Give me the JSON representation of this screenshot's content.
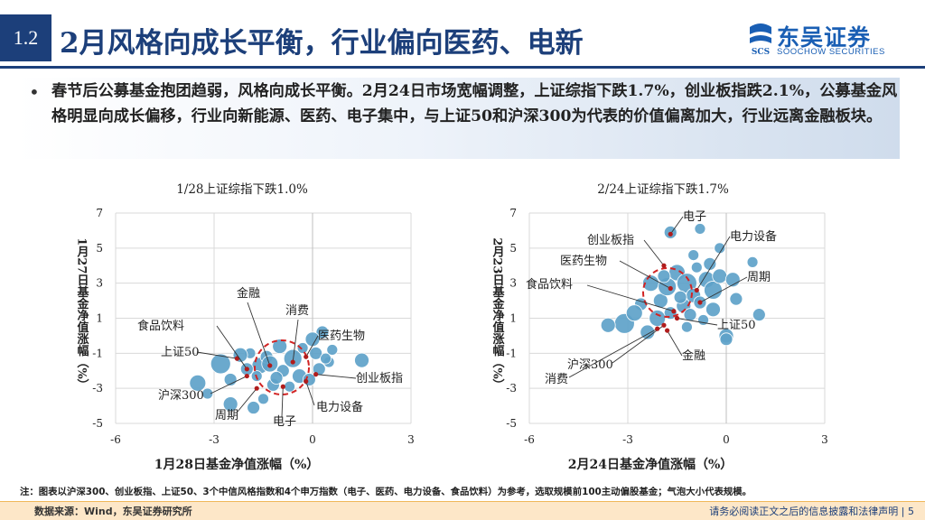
{
  "header": {
    "section_number": "1.2",
    "title": "2月风格向成长平衡，行业偏向医药、电新",
    "logo_cn": "东吴证券",
    "logo_en": "SOOCHOW SECURITIES"
  },
  "bullet": "春节后公募基金抱团趋弱，风格向成长平衡。2月24日市场宽幅调整，上证综指下跌1.7%，创业板指跌2.1%，公募基金风格明显向成长偏移，行业向新能源、医药、电子集中，与上证50和沪深300为代表的价值偏离加大，行业远离金融板块。",
  "colors": {
    "bubble": "#5ea2c9",
    "marker": "#b01c1c",
    "title": "#1c3f7a"
  },
  "chart_data": [
    {
      "type": "scatter",
      "title": "1/28上证综指下跌1.0%",
      "xlabel": "1月28日基金净值涨幅（%）",
      "ylabel": "1月27日基金净值涨幅（%）",
      "xlim": [
        -6,
        3
      ],
      "ylim": [
        -5,
        7
      ],
      "xticks": [
        -6,
        -3,
        0,
        3
      ],
      "yticks": [
        7,
        5,
        3,
        1,
        -1,
        -3,
        -5
      ],
      "bubbles": [
        [
          -2.8,
          -1.6
        ],
        [
          -2.5,
          -2.5
        ],
        [
          -3.5,
          -2.7
        ],
        [
          -3.2,
          -3.3
        ],
        [
          -2.5,
          -3.9
        ],
        [
          -1.8,
          -4.1
        ],
        [
          -1.5,
          -3.6
        ],
        [
          -1.2,
          -2.8
        ],
        [
          -1.6,
          -1.7
        ],
        [
          -1.4,
          -1.2
        ],
        [
          -1.9,
          -1.0
        ],
        [
          -1.0,
          -0.6
        ],
        [
          -0.6,
          -1.3
        ],
        [
          -0.3,
          -0.7
        ],
        [
          0.1,
          -1.0
        ],
        [
          0.5,
          -1.5
        ],
        [
          0.3,
          0.2
        ],
        [
          0.0,
          -0.2
        ],
        [
          -0.9,
          -2.0
        ],
        [
          -0.4,
          -2.3
        ],
        [
          -0.7,
          -2.9
        ],
        [
          -1.1,
          -2.4
        ],
        [
          -1.3,
          -1.6
        ],
        [
          0.6,
          -0.8
        ],
        [
          1.5,
          -1.4
        ],
        [
          0.2,
          -1.9
        ],
        [
          0.4,
          -1.3
        ],
        [
          -0.1,
          -2.5
        ],
        [
          -2.2,
          -1.1
        ],
        [
          -2.0,
          -1.9
        ],
        [
          -1.7,
          -2.3
        ]
      ],
      "annotations": [
        {
          "label": "金融",
          "x": -1.3,
          "y": -1.7
        },
        {
          "label": "消费",
          "x": -0.6,
          "y": -1.5
        },
        {
          "label": "医药生物",
          "x": -0.2,
          "y": -1.2
        },
        {
          "label": "创业板指",
          "x": 0.1,
          "y": -2.2
        },
        {
          "label": "电力设备",
          "x": -0.2,
          "y": -2.6
        },
        {
          "label": "电子",
          "x": -0.9,
          "y": -2.9
        },
        {
          "label": "周期",
          "x": -1.7,
          "y": -3.0
        },
        {
          "label": "沪深300",
          "x": -2.0,
          "y": -2.3
        },
        {
          "label": "上证50",
          "x": -2.3,
          "y": -1.3
        },
        {
          "label": "食品饮料",
          "x": -2.0,
          "y": -1.9
        }
      ]
    },
    {
      "type": "scatter",
      "title": "2/24上证综指下跌1.7%",
      "xlabel": "2月24日基金净值涨幅（%）",
      "ylabel": "2月23日基金净值涨幅（%）",
      "xlim": [
        -6,
        3
      ],
      "ylim": [
        -5,
        7
      ],
      "xticks": [
        -6,
        -3,
        0,
        3
      ],
      "yticks": [
        7,
        5,
        3,
        1,
        -1,
        -3,
        -5
      ],
      "bubbles": [
        [
          -3.1,
          0.7
        ],
        [
          -3.6,
          0.6
        ],
        [
          -2.6,
          1.8
        ],
        [
          -2.3,
          3.0
        ],
        [
          -2.0,
          2.0
        ],
        [
          -1.8,
          2.8
        ],
        [
          -1.5,
          3.6
        ],
        [
          -1.2,
          3.0
        ],
        [
          -1.0,
          2.3
        ],
        [
          -0.8,
          1.9
        ],
        [
          -0.6,
          3.2
        ],
        [
          -0.4,
          2.6
        ],
        [
          -0.2,
          3.4
        ],
        [
          -1.7,
          1.3
        ],
        [
          -2.1,
          1.0
        ],
        [
          -1.3,
          1.7
        ],
        [
          -1.1,
          1.2
        ],
        [
          -0.7,
          0.9
        ],
        [
          -1.7,
          5.9
        ],
        [
          -0.8,
          6.1
        ],
        [
          -0.2,
          5.0
        ],
        [
          -0.5,
          4.1
        ],
        [
          0.2,
          3.2
        ],
        [
          -1.0,
          4.6
        ],
        [
          0.3,
          2.1
        ],
        [
          0.8,
          4.2
        ],
        [
          1.0,
          1.2
        ],
        [
          0.0,
          0.0
        ],
        [
          -0.9,
          3.9
        ],
        [
          -1.9,
          3.4
        ],
        [
          -2.8,
          1.3
        ],
        [
          -1.4,
          2.2
        ],
        [
          -0.4,
          1.5
        ],
        [
          -1.2,
          0.5
        ],
        [
          0.0,
          -0.2
        ],
        [
          -2.4,
          0.2
        ]
      ],
      "annotations": [
        {
          "label": "电子",
          "x": -1.7,
          "y": 5.8
        },
        {
          "label": "电力设备",
          "x": -0.9,
          "y": 2.6
        },
        {
          "label": "创业板指",
          "x": -1.9,
          "y": 4.0
        },
        {
          "label": "医药生物",
          "x": -1.7,
          "y": 2.7
        },
        {
          "label": "周期",
          "x": -0.8,
          "y": 1.9
        },
        {
          "label": "食品饮料",
          "x": -1.6,
          "y": 1.4
        },
        {
          "label": "上证50",
          "x": -1.5,
          "y": 1.0
        },
        {
          "label": "金融",
          "x": -1.8,
          "y": 0.3
        },
        {
          "label": "沪深300",
          "x": -1.9,
          "y": 0.6
        },
        {
          "label": "消费",
          "x": -2.1,
          "y": 0.4
        }
      ]
    }
  ],
  "note": "注：图表以沪深300、创业板指、上证50、3个中信风格指数和4个申万指数（电子、医药、电力设备、食品饮料）为参考，选取规模前100主动偏股基金；气泡大小代表规模。",
  "footer": {
    "source": "数据来源：Wind，东吴证券研究所",
    "disclaimer": "请务必阅读正文之后的信息披露和法律声明 | 5"
  }
}
